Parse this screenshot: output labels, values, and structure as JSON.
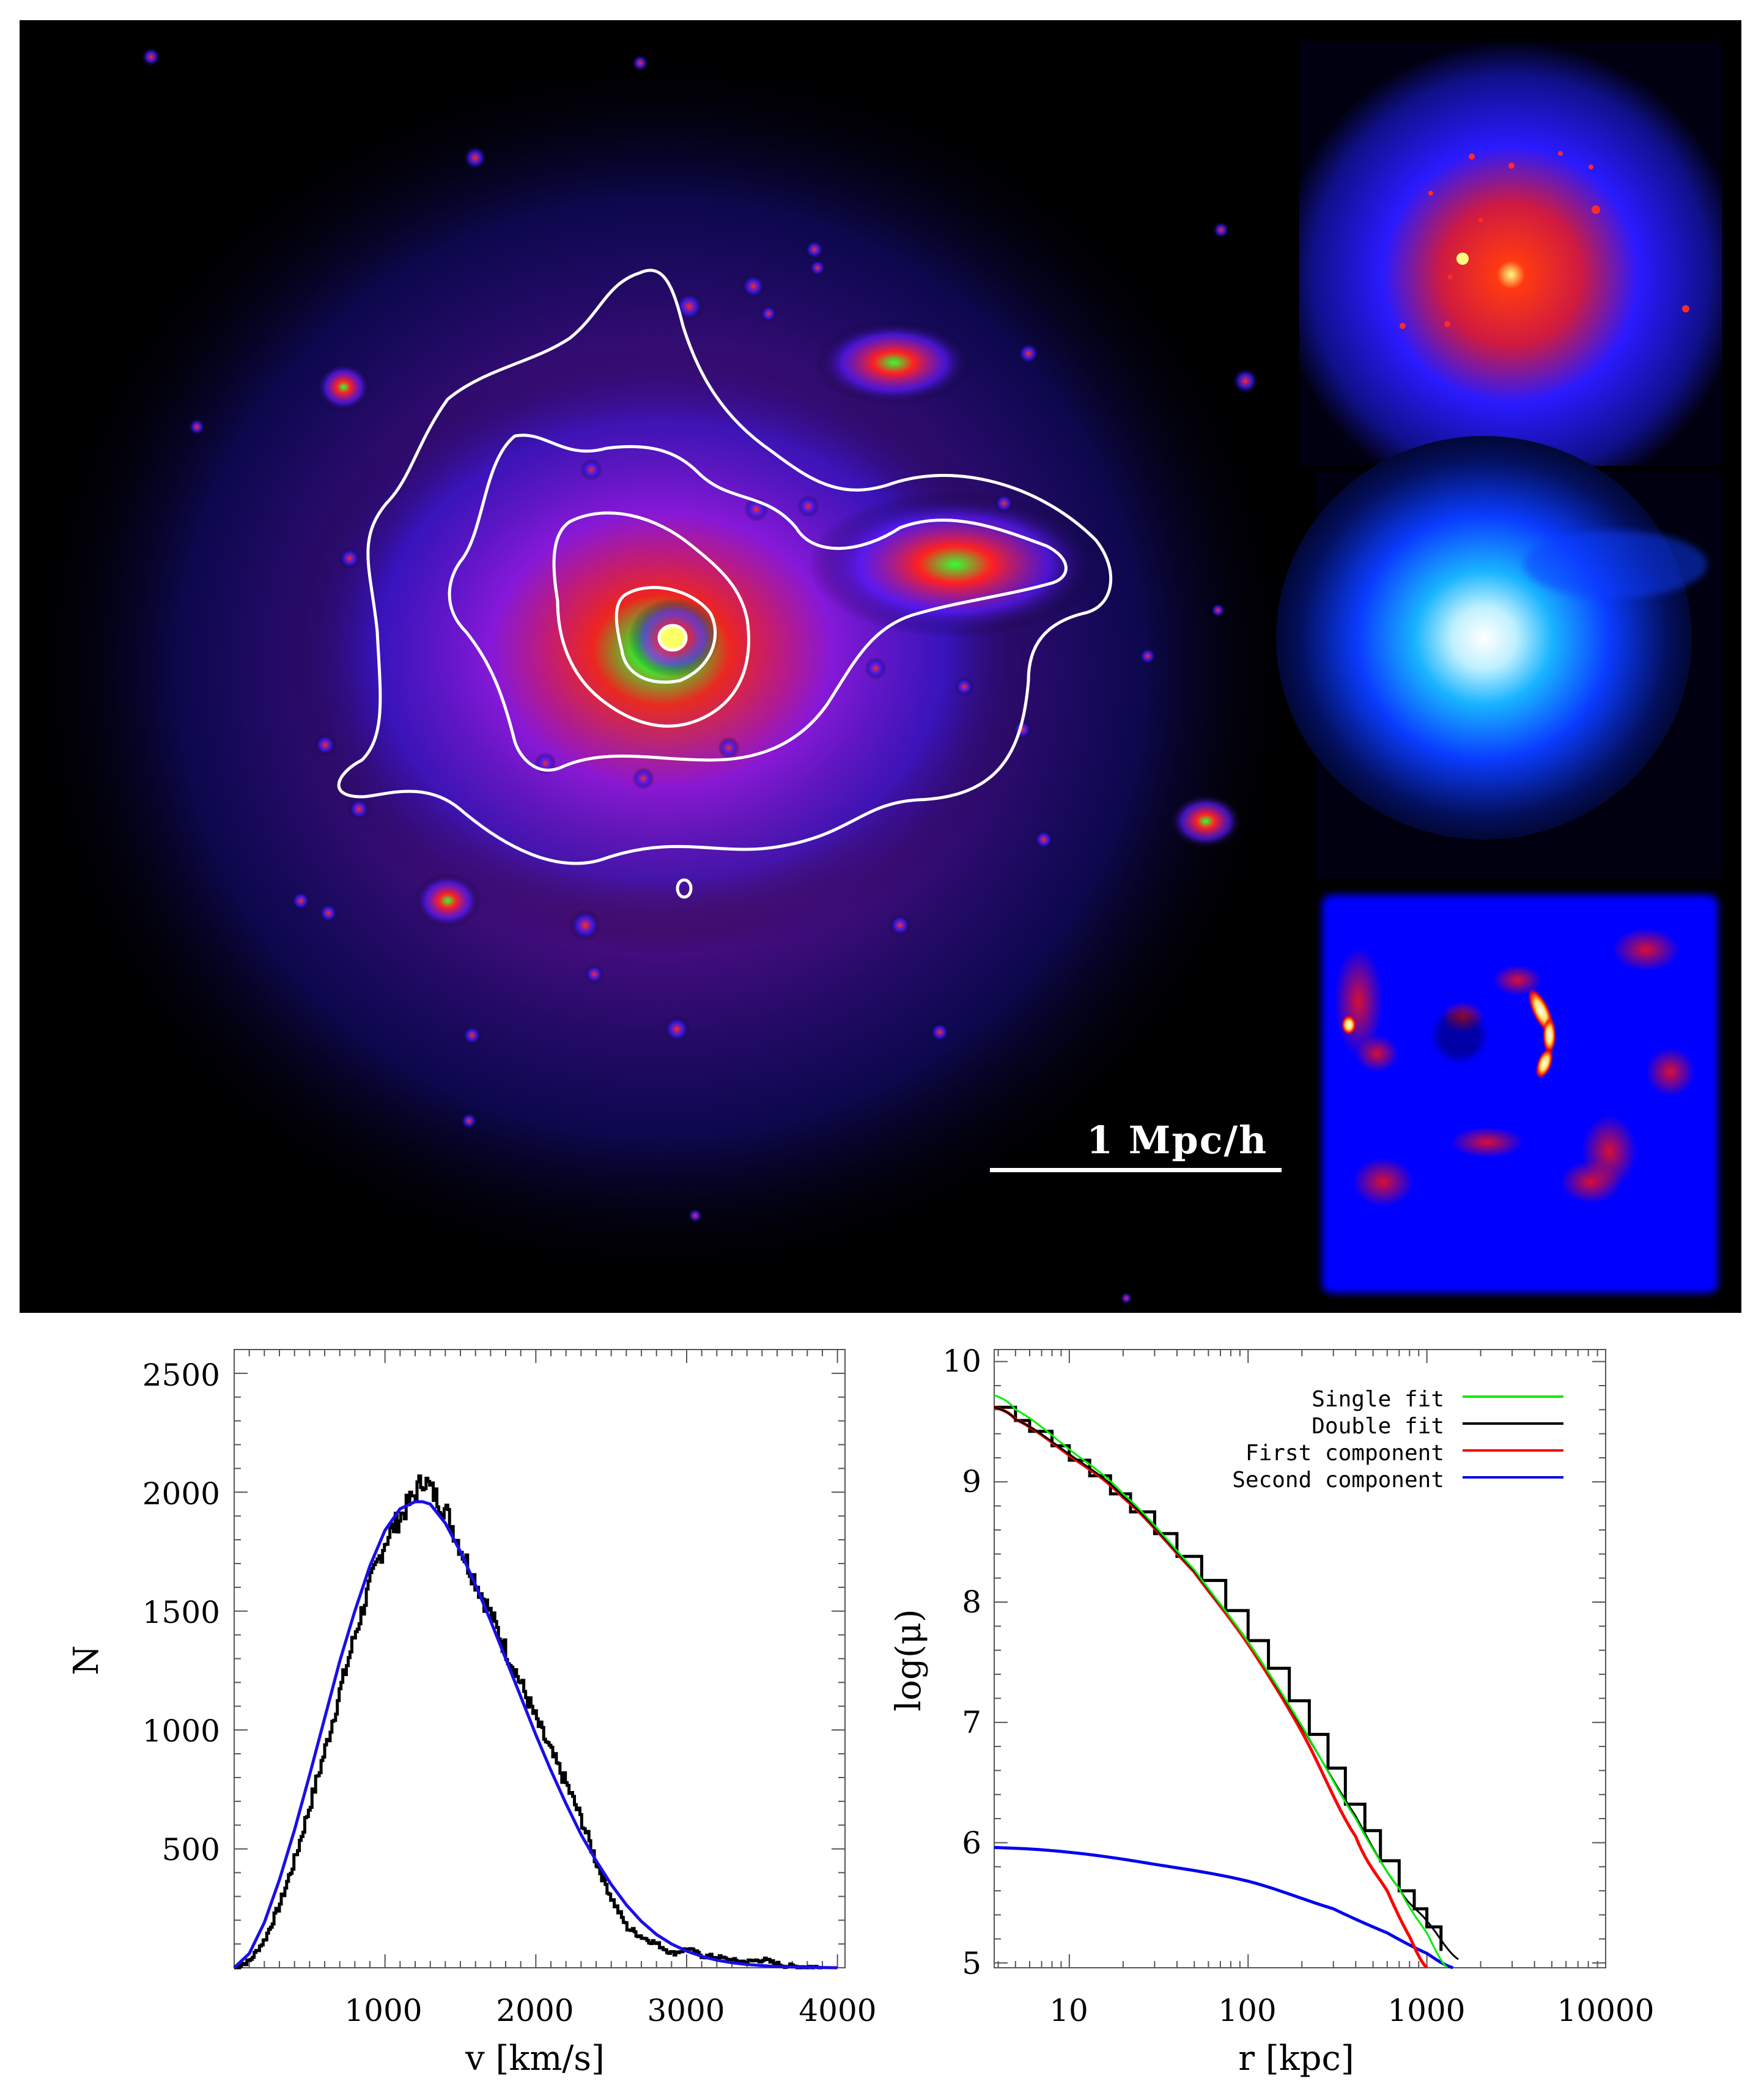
{
  "figure": {
    "top_panel": {
      "main_map": {
        "description": "Projected dark-matter density map of a galaxy cluster with white surface-density contours",
        "colormap": [
          "#000000",
          "#2a1aff",
          "#ff1a1a",
          "#22ff22",
          "#ffff66"
        ],
        "contour_color": "#ffffff",
        "contour_count": 5,
        "scale_bar": {
          "label": "1 Mpc/h",
          "color": "#ffffff"
        }
      },
      "insets": [
        {
          "id": "inset-top",
          "description": "Dark matter density (blue-red-yellow colormap)",
          "colors": [
            "#000010",
            "#1f1fff",
            "#ff2020",
            "#ffff80"
          ]
        },
        {
          "id": "inset-middle",
          "description": "Gas density / X-ray emission (blue-cyan-white colormap)",
          "colors": [
            "#000010",
            "#0a3cff",
            "#19b4ff",
            "#ffffff"
          ]
        },
        {
          "id": "inset-bottom",
          "description": "Residual / shock map (blue-red-white colormap)",
          "colors": [
            "#000000",
            "#0000ff",
            "#ff0000",
            "#ffffff"
          ]
        }
      ]
    },
    "left_plot": {
      "xlabel": "v [km/s]",
      "ylabel": "N",
      "x_ticks": [
        "1000",
        "2000",
        "3000",
        "4000"
      ],
      "y_ticks": [
        "500",
        "1000",
        "1500",
        "2000",
        "2500"
      ]
    },
    "right_plot": {
      "xlabel": "r [kpc]",
      "ylabel": "log(μ)",
      "x_ticks": [
        "10",
        "100",
        "1000",
        "10000"
      ],
      "y_ticks": [
        "5",
        "6",
        "7",
        "8",
        "9",
        "10"
      ],
      "legend": [
        {
          "label": "Single fit",
          "color": "#00ee00"
        },
        {
          "label": "Double fit",
          "color": "#000000"
        },
        {
          "label": "First component",
          "color": "#ff0000"
        },
        {
          "label": "Second component",
          "color": "#0000ee"
        }
      ]
    }
  },
  "chart_data": [
    {
      "type": "line",
      "title": "",
      "xlabel": "v [km/s]",
      "ylabel": "N",
      "xlim": [
        0,
        4050
      ],
      "ylim": [
        0,
        2600
      ],
      "grid": false,
      "series": [
        {
          "name": "Histogram",
          "style": "step",
          "color": "#000000",
          "x": [
            0,
            100,
            200,
            300,
            400,
            500,
            600,
            700,
            800,
            900,
            1000,
            1100,
            1200,
            1250,
            1300,
            1400,
            1500,
            1600,
            1700,
            1800,
            1900,
            2000,
            2100,
            2200,
            2300,
            2400,
            2500,
            2600,
            2700,
            2800,
            2900,
            3000,
            3100,
            3200,
            3300,
            3400,
            3500,
            3600,
            3700,
            3800,
            3900
          ],
          "y": [
            0,
            30,
            120,
            270,
            460,
            690,
            920,
            1170,
            1410,
            1620,
            1800,
            1900,
            2000,
            2060,
            2010,
            1920,
            1760,
            1620,
            1480,
            1330,
            1190,
            1040,
            900,
            770,
            620,
            440,
            290,
            170,
            130,
            100,
            60,
            80,
            50,
            45,
            30,
            25,
            35,
            15,
            5,
            5,
            0
          ]
        },
        {
          "name": "Fit",
          "style": "smooth",
          "color": "#1a0ee8",
          "x": [
            0,
            100,
            200,
            300,
            400,
            500,
            600,
            700,
            800,
            900,
            1000,
            1100,
            1200,
            1250,
            1300,
            1400,
            1500,
            1600,
            1700,
            1800,
            1900,
            2000,
            2100,
            2200,
            2300,
            2400,
            2500,
            2600,
            2700,
            2800,
            2900,
            3000,
            3100,
            3200,
            3300,
            3400,
            3500,
            3600,
            3700,
            3800,
            3900,
            4000
          ],
          "y": [
            0,
            60,
            190,
            370,
            580,
            810,
            1050,
            1290,
            1500,
            1690,
            1840,
            1930,
            1960,
            1960,
            1950,
            1870,
            1750,
            1610,
            1460,
            1300,
            1140,
            980,
            830,
            690,
            560,
            450,
            350,
            265,
            195,
            140,
            100,
            70,
            48,
            32,
            21,
            14,
            9,
            5,
            3,
            2,
            1,
            0
          ]
        }
      ]
    },
    {
      "type": "line",
      "title": "",
      "xlabel": "r [kpc]",
      "ylabel": "log(μ)",
      "xscale": "log",
      "xlim": [
        3.8,
        10000
      ],
      "ylim": [
        4.96,
        10.1
      ],
      "grid": false,
      "legend_position": "upper right",
      "series": [
        {
          "name": "Data profile",
          "style": "step",
          "color": "#000000",
          "x": [
            3.8,
            5,
            6,
            8,
            10,
            13,
            17,
            22,
            30,
            40,
            55,
            75,
            100,
            130,
            170,
            220,
            280,
            350,
            450,
            550,
            700,
            850,
            1000,
            1200
          ],
          "y": [
            9.62,
            9.51,
            9.42,
            9.3,
            9.18,
            9.05,
            8.9,
            8.75,
            8.57,
            8.38,
            8.18,
            7.93,
            7.68,
            7.45,
            7.18,
            6.9,
            6.62,
            6.32,
            6.1,
            5.85,
            5.6,
            5.45,
            5.3,
            5.1
          ]
        },
        {
          "name": "Single fit",
          "color": "#00ee00",
          "x": [
            3.8,
            5,
            10,
            20,
            50,
            100,
            200,
            400,
            700,
            1000,
            1300
          ],
          "y": [
            9.72,
            9.6,
            9.27,
            8.9,
            8.27,
            7.67,
            6.97,
            6.2,
            5.62,
            5.25,
            4.96
          ]
        },
        {
          "name": "Double fit",
          "color": "#000000",
          "x": [
            3.8,
            5,
            10,
            20,
            50,
            100,
            200,
            400,
            700,
            1000,
            1500
          ],
          "y": [
            9.62,
            9.52,
            9.23,
            8.88,
            8.26,
            7.67,
            6.96,
            6.22,
            5.62,
            5.35,
            5.03
          ]
        },
        {
          "name": "First component",
          "color": "#ff0000",
          "x": [
            3.8,
            5,
            10,
            20,
            50,
            100,
            200,
            400,
            600,
            800,
            1000
          ],
          "y": [
            9.62,
            9.52,
            9.22,
            8.87,
            8.25,
            7.65,
            6.92,
            6.05,
            5.6,
            5.22,
            4.96
          ]
        },
        {
          "name": "Second component",
          "color": "#0000ee",
          "x": [
            3.8,
            10,
            30,
            100,
            300,
            600,
            1000,
            1400
          ],
          "y": [
            5.96,
            5.92,
            5.82,
            5.68,
            5.45,
            5.25,
            5.08,
            4.96
          ]
        }
      ]
    }
  ]
}
